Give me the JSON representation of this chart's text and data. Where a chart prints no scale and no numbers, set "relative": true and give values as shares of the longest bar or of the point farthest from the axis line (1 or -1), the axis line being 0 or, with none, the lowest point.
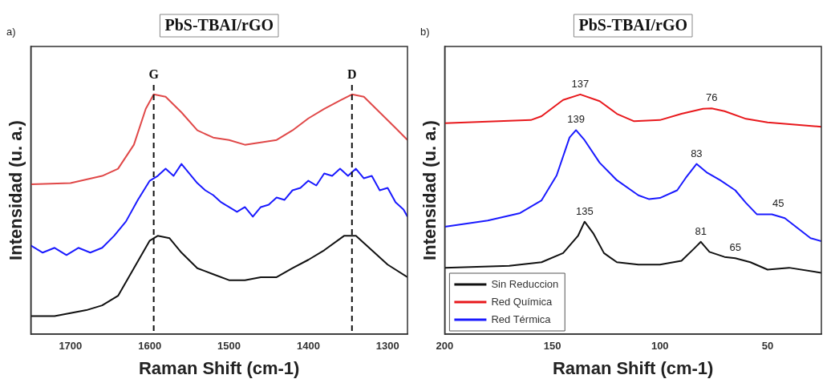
{
  "chart_data": [
    {
      "type": "line",
      "title": "PbS-TBAI/rGO",
      "xlabel": "Raman Shift (cm-1)",
      "ylabel": "Intensidad (u. a.)",
      "relative": true,
      "xlim": [
        1750,
        1275
      ],
      "xticks": [
        1700,
        1600,
        1500,
        1400,
        1300
      ],
      "series": [
        {
          "color": "#e04848",
          "x": [
            1750,
            1700,
            1660,
            1640,
            1620,
            1605,
            1595,
            1580,
            1560,
            1540,
            1520,
            1500,
            1480,
            1460,
            1440,
            1420,
            1400,
            1380,
            1360,
            1345,
            1330,
            1310,
            1290,
            1275
          ],
          "values": [
            0.625,
            0.63,
            0.66,
            0.69,
            0.79,
            0.94,
            1.0,
            0.99,
            0.925,
            0.85,
            0.82,
            0.81,
            0.79,
            0.8,
            0.81,
            0.85,
            0.9,
            0.94,
            0.975,
            1.0,
            0.99,
            0.925,
            0.86,
            0.81
          ]
        },
        {
          "color": "#1a1aff",
          "x": [
            1750,
            1735,
            1720,
            1705,
            1690,
            1675,
            1660,
            1645,
            1630,
            1615,
            1600,
            1590,
            1580,
            1570,
            1560,
            1550,
            1540,
            1530,
            1520,
            1510,
            1500,
            1490,
            1480,
            1470,
            1460,
            1450,
            1440,
            1430,
            1420,
            1410,
            1400,
            1390,
            1380,
            1370,
            1360,
            1350,
            1340,
            1330,
            1320,
            1310,
            1300,
            1290,
            1280,
            1275
          ],
          "values": [
            0.37,
            0.34,
            0.36,
            0.33,
            0.36,
            0.34,
            0.36,
            0.41,
            0.47,
            0.56,
            0.64,
            0.66,
            0.69,
            0.66,
            0.71,
            0.67,
            0.63,
            0.6,
            0.58,
            0.55,
            0.53,
            0.51,
            0.53,
            0.49,
            0.53,
            0.54,
            0.57,
            0.56,
            0.6,
            0.61,
            0.64,
            0.62,
            0.67,
            0.66,
            0.69,
            0.66,
            0.69,
            0.65,
            0.66,
            0.6,
            0.61,
            0.55,
            0.52,
            0.49
          ]
        },
        {
          "color": "#111111",
          "x": [
            1750,
            1720,
            1700,
            1680,
            1660,
            1640,
            1620,
            1600,
            1590,
            1575,
            1560,
            1540,
            1520,
            1500,
            1480,
            1460,
            1440,
            1420,
            1400,
            1380,
            1355,
            1340,
            1320,
            1300,
            1275
          ],
          "values": [
            0.075,
            0.075,
            0.0875,
            0.1,
            0.12,
            0.16,
            0.275,
            0.39,
            0.41,
            0.4,
            0.34,
            0.275,
            0.25,
            0.225,
            0.225,
            0.2375,
            0.2375,
            0.275,
            0.31,
            0.35,
            0.41,
            0.41,
            0.35,
            0.29,
            0.2375
          ]
        }
      ],
      "ref_lines": [
        {
          "axis": "x",
          "value": 1595,
          "label": "G",
          "color": "#111111",
          "line_style": "dashed"
        },
        {
          "axis": "x",
          "value": 1345,
          "label": "D",
          "color": "#111111",
          "line_style": "dashed"
        }
      ],
      "annotations": [
        "a)"
      ]
    },
    {
      "type": "line",
      "title": "PbS-TBAI/rGO",
      "xlabel": "Raman Shift (cm-1)",
      "ylabel": "Intensidad (u. a.)",
      "relative": true,
      "xlim": [
        200,
        25
      ],
      "xticks": [
        200,
        150,
        100,
        50
      ],
      "legend": "bottom left",
      "series": [
        {
          "name": "Sin Reduccion",
          "color": "#111111",
          "x": [
            200,
            170,
            155,
            145,
            138,
            135,
            131,
            126,
            120,
            110,
            100,
            90,
            84,
            81,
            77,
            70,
            65,
            58,
            50,
            40,
            25
          ],
          "values": [
            0.277,
            0.285,
            0.3,
            0.338,
            0.411,
            0.469,
            0.421,
            0.338,
            0.3,
            0.29,
            0.29,
            0.306,
            0.358,
            0.385,
            0.343,
            0.322,
            0.317,
            0.3,
            0.269,
            0.277,
            0.256
          ]
        },
        {
          "name": "Red Química",
          "color": "#e8181c",
          "x": [
            200,
            160,
            155,
            145,
            137,
            128,
            120,
            112,
            100,
            90,
            80,
            76,
            70,
            60,
            50,
            25
          ],
          "values": [
            0.88,
            0.893,
            0.909,
            0.977,
            1.0,
            0.972,
            0.919,
            0.888,
            0.893,
            0.919,
            0.94,
            0.942,
            0.93,
            0.898,
            0.883,
            0.865
          ]
        },
        {
          "name": "Red Térmica",
          "color": "#1a1aff",
          "x": [
            200,
            180,
            165,
            155,
            148,
            142,
            139,
            135,
            128,
            120,
            110,
            105,
            100,
            92,
            88,
            83,
            78,
            72,
            65,
            60,
            55,
            48,
            42,
            36,
            30,
            25
          ],
          "values": [
            0.448,
            0.474,
            0.505,
            0.558,
            0.662,
            0.82,
            0.851,
            0.809,
            0.715,
            0.642,
            0.579,
            0.563,
            0.568,
            0.6,
            0.652,
            0.71,
            0.673,
            0.642,
            0.6,
            0.547,
            0.5,
            0.5,
            0.484,
            0.442,
            0.4,
            0.388
          ]
        }
      ],
      "annotations": [
        "b)",
        {
          "text": "137",
          "x": 137,
          "y": 1.0
        },
        {
          "text": "76",
          "x": 76,
          "y": 0.942
        },
        {
          "text": "139",
          "x": 139,
          "y": 0.851
        },
        {
          "text": "83",
          "x": 83,
          "y": 0.71
        },
        {
          "text": "45",
          "x": 45,
          "y": 0.5
        },
        {
          "text": "135",
          "x": 135,
          "y": 0.469
        },
        {
          "text": "81",
          "x": 81,
          "y": 0.385
        },
        {
          "text": "65",
          "x": 65,
          "y": 0.317
        }
      ]
    }
  ]
}
